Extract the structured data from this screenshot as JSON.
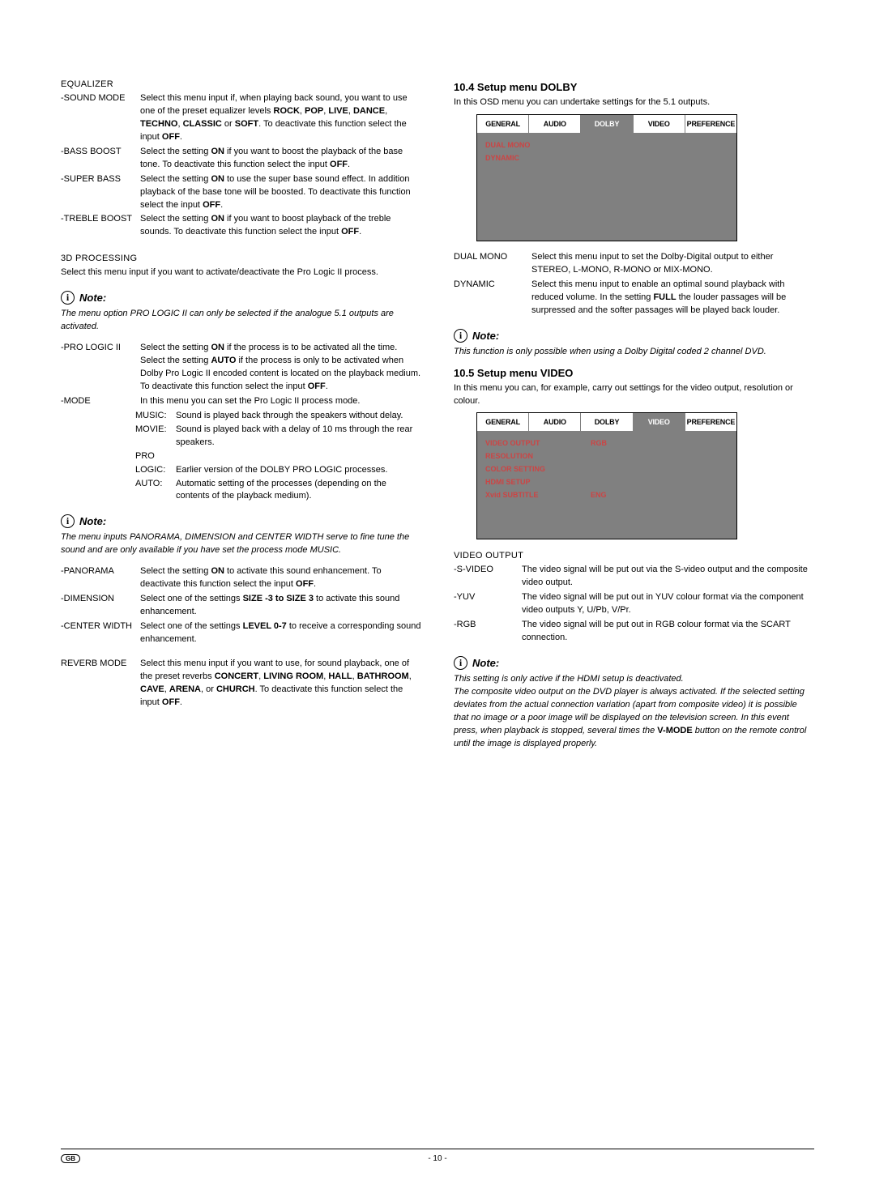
{
  "left": {
    "equalizer_title": "EQUALIZER",
    "equalizer": [
      {
        "label": "-SOUND MODE",
        "body": "Select this menu input if, when playing back sound, you want to use one of the preset equalizer levels <b>ROCK</b>, <b>POP</b>, <b>LIVE</b>, <b>DANCE</b>, <b>TECHNO</b>, <b>CLASSIC</b> or <b>SOFT</b>. To deactivate this function select the input <b>OFF</b>."
      },
      {
        "label": "-BASS BOOST",
        "body": "Select the setting <b>ON</b> if you want to boost the playback of the base tone. To deactivate this function select the input <b>OFF</b>."
      },
      {
        "label": "-SUPER BASS",
        "body": "Select the setting <b>ON</b> to use the super base sound effect. In addition playback of the base tone will be boosted. To deactivate this function select the input <b>OFF</b>."
      },
      {
        "label": "-TREBLE BOOST",
        "body": "Select the setting <b>ON</b> if you want to boost playback of the treble sounds. To deactivate this function select the input <b>OFF</b>."
      }
    ],
    "proc_title": "3D PROCESSING",
    "proc_text": "Select this menu input if you want to activate/deactivate the Pro Logic II process.",
    "note1": {
      "label": "Note:",
      "body": "<i>The menu option</i> PRO LOGIC II <i>can only be selected if the analogue 5.1 outputs are activated.</i>"
    },
    "prologic": [
      {
        "label": "-PRO LOGIC II",
        "body": "Select the setting <b>ON</b> if the process is to be activated all the time.<br>Select the setting <b>AUTO</b> if the process is only to be activated when Dolby Pro Logic II encoded content is located on the playback medium.<br>To deactivate this function select the input <b>OFF</b>."
      },
      {
        "label": "-MODE",
        "body": "In this menu you can set the Pro Logic II process mode."
      }
    ],
    "mode_items": [
      {
        "label": "MUSIC:",
        "body": "Sound is played back through the speakers without delay."
      },
      {
        "label": "MOVIE:",
        "body": "Sound is played back with a delay of 10 ms through the rear speakers."
      },
      {
        "label": "PRO",
        "body": ""
      },
      {
        "label": "LOGIC:",
        "body": "Earlier version of the DOLBY PRO LOGIC processes."
      },
      {
        "label": "AUTO:",
        "body": "Automatic setting of the processes (depending on the contents of the playback medium)."
      }
    ],
    "note2": {
      "label": "Note:",
      "body": "<i>The menu inputs</i> PANORAMA<i>,</i> DIMENSION <i>and</i> CENTER WIDTH <i>serve to fine tune the sound and are only available if you have set the process mode</i> MUSIC<i>.</i>"
    },
    "panorama": [
      {
        "label": "-PANORAMA",
        "body": "Select the setting <b>ON</b> to activate this sound enhancement. To deactivate this function select the input <b>OFF</b>."
      },
      {
        "label": "-DIMENSION",
        "body": "Select one of the settings <b>SIZE -3 to SIZE 3</b> to activate this sound enhancement."
      },
      {
        "label": "-CENTER WIDTH",
        "body": "Select one of the settings <b>LEVEL 0-7</b> to receive a corresponding sound enhancement."
      }
    ],
    "reverb": {
      "label": "REVERB MODE",
      "body": "Select this menu input if you want to use, for sound playback, one of the preset reverbs <b>CONCERT</b>, <b>LIVING ROOM</b>, <b>HALL</b>, <b>BATHROOM</b>, <b>CAVE</b>, <b>ARENA</b>, or <b>CHURCH</b>. To deactivate this function select the input <b>OFF</b>."
    }
  },
  "right": {
    "h104": "10.4 Setup menu DOLBY",
    "h104_sub": "In this OSD menu you can undertake settings for the 5.1 outputs.",
    "osd1": {
      "tabs": [
        "GENERAL",
        "AUDIO",
        "DOLBY",
        "VIDEO",
        "PREFERENCE"
      ],
      "active": 2,
      "items": [
        [
          "DUAL MONO",
          ""
        ],
        [
          "DYNAMIC",
          ""
        ]
      ],
      "height": 120
    },
    "dolby_defs": [
      {
        "label": "DUAL MONO",
        "body": "Select this menu input to set the Dolby-Digital output to either STEREO, L-MONO, R-MONO or MIX-MONO."
      },
      {
        "label": "DYNAMIC",
        "body": "Select this menu input to enable an optimal sound playback with reduced volume. In the setting <b>FULL</b> the louder passages will be surpressed and the softer passages will be played back louder."
      }
    ],
    "note3": {
      "label": "Note:",
      "body": "This function is only possible when using a Dolby Digital coded 2 channel DVD."
    },
    "h105": "10.5 Setup menu VIDEO",
    "h105_sub": "In this menu you can, for example, carry out settings for the video output, resolution or colour.",
    "osd2": {
      "tabs": [
        "GENERAL",
        "AUDIO",
        "DOLBY",
        "VIDEO",
        "PREFERENCE"
      ],
      "active": 3,
      "items": [
        [
          "VIDEO OUTPUT",
          "RGB"
        ],
        [
          "RESOLUTION",
          ""
        ],
        [
          "COLOR SETTING",
          ""
        ],
        [
          "HDMI SETUP",
          ""
        ],
        [
          "Xvid SUBTITLE",
          "ENG"
        ]
      ],
      "height": 120
    },
    "video_out_title": "VIDEO OUTPUT",
    "video_defs": [
      {
        "label": "-S-VIDEO",
        "body": "The video signal will be put out via the S-video output and the composite video output."
      },
      {
        "label": "-YUV",
        "body": "The video signal will be put out in YUV colour format via the component video outputs Y, U/Pb, V/Pr."
      },
      {
        "label": "-RGB",
        "body": "The video signal will be put out in RGB colour format via the SCART connection."
      }
    ],
    "note4": {
      "label": "Note:",
      "body": "This setting is only active if the HDMI setup is deactivated.<br>The composite video output on the DVD player is always activated. If the selected setting deviates from the actual connection variation (apart from composite video) it is possible that no image or a poor image will be displayed on the television screen. In this event press, when playback is stopped, several times the <span style='font-style:normal;font-weight:bold'>V-MODE</span> button on the remote control until the image is displayed properly."
    }
  },
  "footer": {
    "gb": "GB",
    "page": "- 10 -"
  }
}
